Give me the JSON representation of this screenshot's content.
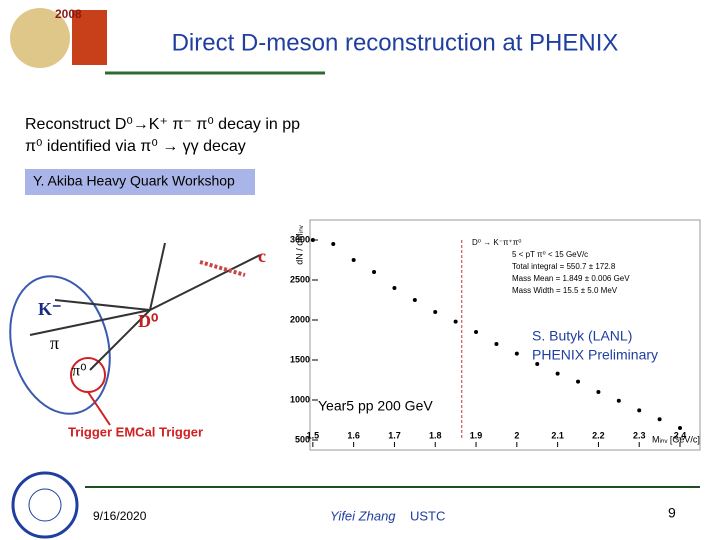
{
  "header": {
    "title": "Direct D-meson reconstruction at PHENIX"
  },
  "bullets": [
    "Reconstruct D⁰→K⁺ π⁻ π⁰ decay in pp",
    "π⁰ identified via π⁰ → γγ decay"
  ],
  "source_box": "Y. Akiba Heavy Quark Workshop",
  "diagram": {
    "labels": [
      "K⁻",
      "D⁰",
      "π",
      "π⁰",
      "c",
      "Trigger EMCal Trigger"
    ]
  },
  "plot": {
    "type": "scatter",
    "x": [
      1.5,
      1.55,
      1.6,
      1.65,
      1.7,
      1.75,
      1.8,
      1.85,
      1.9,
      1.95,
      2.0,
      2.05,
      2.1,
      2.15,
      2.2,
      2.25,
      2.3,
      2.35,
      2.4
    ],
    "values": [
      3000,
      2950,
      2750,
      2600,
      2400,
      2250,
      2100,
      1980,
      1850,
      1700,
      1580,
      1450,
      1330,
      1230,
      1100,
      990,
      870,
      760,
      650
    ],
    "color": "#000000",
    "xlim": [
      1.493,
      2.449
    ],
    "ylim": [
      375,
      3225
    ],
    "xticks": [
      1.5,
      1.6,
      1.7,
      1.8,
      1.9,
      2,
      2.1,
      2.2,
      2.3,
      2.4
    ],
    "yticks": [
      500,
      1000,
      1500,
      2000,
      2500,
      3000
    ],
    "x_label": "Mᵢₙᵥ [GeV/c]",
    "y_label": "dN / dMᵢₙᵥ",
    "dashed_x": 1.865,
    "legend": [
      "D⁰ → K⁻π⁺π⁰",
      "5 < pT π⁰ < 15 GeV/c",
      "Total integral = 550.7 ± 172.8",
      "Mass Mean = 1.849 ± 0.006 GeV",
      "Mass Width = 15.5 ± 5.0 MeV"
    ]
  },
  "annotations": {
    "credit": [
      "S. Butyk (LANL)",
      "PHENIX Preliminary"
    ],
    "dataset": "Year5 pp 200 GeV"
  },
  "footer": {
    "date": "9/16/2020",
    "author": "Yifei Zhang",
    "institute": "USTC",
    "page": "9"
  }
}
